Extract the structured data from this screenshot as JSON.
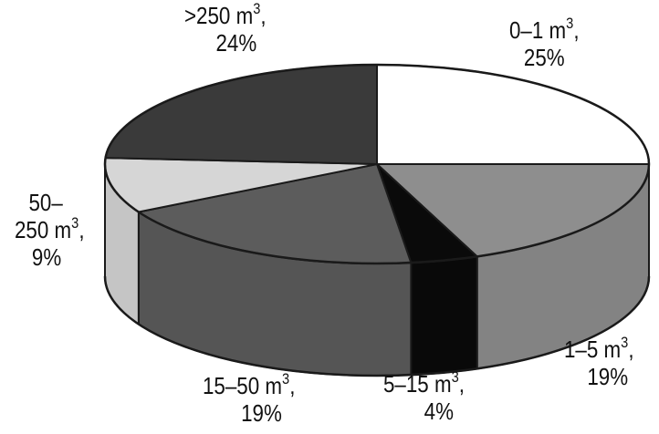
{
  "chart_data": {
    "type": "pie",
    "title": "",
    "units": "%",
    "slices": [
      {
        "range": "0–1",
        "unit": "m",
        "exp": "3",
        "label_suffix": ",",
        "value": 25,
        "value_text": "25%",
        "color": "#ffffff"
      },
      {
        "range": "1–5",
        "unit": "m",
        "exp": "3",
        "label_suffix": ",",
        "value": 19,
        "value_text": "19%",
        "color": "#8e8e8e"
      },
      {
        "range": "5–15",
        "unit": "m",
        "exp": "3",
        "label_suffix": ",",
        "value": 4,
        "value_text": "4%",
        "color": "#0a0a0a"
      },
      {
        "range": "15–50",
        "unit": "m",
        "exp": "3",
        "label_suffix": ",",
        "value": 19,
        "value_text": "19%",
        "color": "#5c5c5c"
      },
      {
        "range": "50–",
        "range2": "250",
        "unit": "m",
        "exp": "3",
        "label_suffix": ",",
        "value": 9,
        "value_text": "9%",
        "color": "#d6d6d6"
      },
      {
        "range": ">250",
        "unit": "m",
        "exp": "3",
        "label_suffix": ",",
        "value": 24,
        "value_text": "24%",
        "color": "#3a3a3a"
      }
    ],
    "edge_color": "#1a1a1a",
    "style": "3d"
  }
}
